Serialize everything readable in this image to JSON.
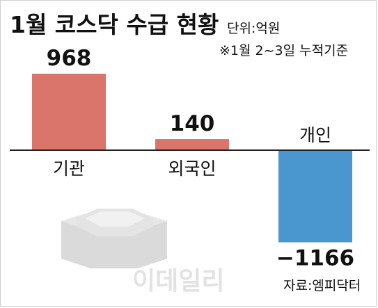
{
  "title": "1월 코스닥 수급 현황",
  "unit_note": "단위:억원",
  "period_note": "※1월 2~3일 누적기준",
  "source": "자료:엠피닥터",
  "watermark": "이데일리",
  "colors": {
    "positive": "#d9756a",
    "negative": "#4a96cf",
    "axis": "#222222"
  },
  "chart_data": {
    "type": "bar",
    "title": "1월 코스닥 수급 현황",
    "categories": [
      "기관",
      "외국인",
      "개인"
    ],
    "values": [
      968,
      140,
      -1166
    ],
    "value_labels": [
      "968",
      "140",
      "−1166"
    ],
    "xlabel": "",
    "ylabel": "",
    "ylim": [
      -1166,
      968
    ],
    "grid": false,
    "legend": "none"
  }
}
